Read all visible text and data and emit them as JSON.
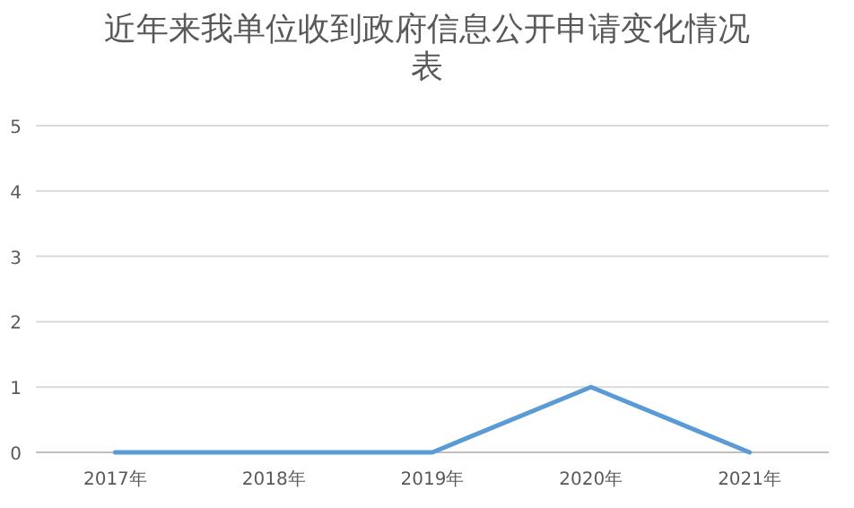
{
  "chart_data": {
    "type": "line",
    "title": "近年来我单位收到政府信息公开申请变化情况表",
    "categories": [
      "2017年",
      "2018年",
      "2019年",
      "2020年",
      "2021年"
    ],
    "series": [
      {
        "color": "#5b9bd5",
        "values": [
          0,
          0,
          0,
          1,
          0
        ]
      }
    ],
    "ylim": [
      0,
      5
    ],
    "yticks": [
      0,
      1,
      2,
      3,
      4,
      5
    ],
    "grid": "y",
    "marker": "none",
    "line_style": "solid"
  }
}
